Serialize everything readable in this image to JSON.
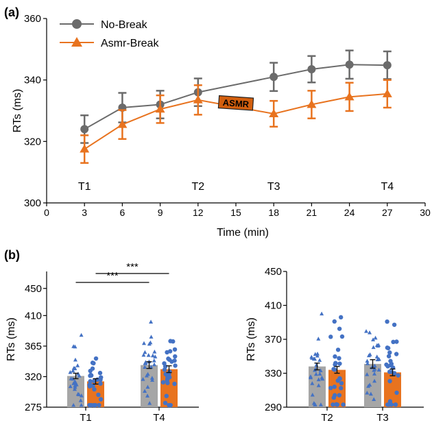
{
  "colors": {
    "gray": "#6b6b6b",
    "gray_dark": "#555555",
    "orange": "#e8731f",
    "orange_dark": "#d35f0e",
    "blue": "#4472c4",
    "axis": "#000000"
  },
  "chart_data": [
    {
      "id": "a",
      "panel_label": "(a)",
      "type": "line",
      "xlabel": "Time (min)",
      "ylabel": "RTs (ms)",
      "xlim": [
        0,
        30
      ],
      "ylim": [
        300,
        360
      ],
      "xticks": [
        0,
        3,
        6,
        9,
        12,
        15,
        18,
        21,
        24,
        27,
        30
      ],
      "yticks": [
        300,
        320,
        340,
        360
      ],
      "legend_position": "top-left",
      "series": [
        {
          "name": "No-Break",
          "marker": "circle",
          "color": "#6b6b6b",
          "x": [
            3,
            6,
            9,
            12,
            18,
            21,
            24,
            27
          ],
          "y": [
            324,
            331,
            332,
            336,
            341,
            343.5,
            345,
            344.8
          ],
          "err": [
            4.5,
            4.8,
            4.5,
            4.5,
            4.6,
            4.3,
            4.6,
            4.5
          ]
        },
        {
          "name": "Asmr-Break",
          "marker": "triangle",
          "color": "#e8731f",
          "x": [
            3,
            6,
            9,
            12,
            18,
            21,
            24,
            27
          ],
          "y": [
            317.5,
            325.5,
            330.5,
            333.5,
            329,
            332,
            334.5,
            335.5
          ],
          "err": [
            4.5,
            4.7,
            4.5,
            4.8,
            4.2,
            4.5,
            4.6,
            4.5
          ]
        }
      ],
      "time_labels": [
        {
          "text": "T1",
          "x": 3
        },
        {
          "text": "T2",
          "x": 12
        },
        {
          "text": "T3",
          "x": 18
        },
        {
          "text": "T4",
          "x": 27
        }
      ],
      "annotation": {
        "text": "ASMR",
        "x": 15,
        "y": 332.5
      }
    },
    {
      "id": "b1",
      "panel_label": "(b)",
      "type": "bar",
      "ylabel": "RTs (ms)",
      "ylim": [
        275,
        475
      ],
      "yticks": [
        275,
        320,
        365,
        410,
        450
      ],
      "categories": [
        "T1",
        "T4"
      ],
      "series": [
        {
          "name": "No-Break",
          "color": "#a6a6a6",
          "values": [
            321,
            337
          ],
          "err": [
            4,
            5
          ]
        },
        {
          "name": "Asmr-Break",
          "color": "#e8731f",
          "values": [
            313,
            331
          ],
          "err": [
            4,
            5
          ]
        }
      ],
      "significance": [
        {
          "label": "***",
          "from": "T1",
          "to": "T4",
          "group_from": 0,
          "group_to": 0
        },
        {
          "label": "***",
          "from": "T1",
          "to": "T4",
          "group_from": 1,
          "group_to": 1
        }
      ]
    },
    {
      "id": "b2",
      "type": "bar",
      "ylabel": "RTs (ms)",
      "ylim": [
        290,
        450
      ],
      "yticks": [
        290,
        330,
        370,
        410,
        450
      ],
      "categories": [
        "T2",
        "T3"
      ],
      "series": [
        {
          "name": "No-Break",
          "color": "#a6a6a6",
          "values": [
            338,
            341
          ],
          "err": [
            4,
            5
          ]
        },
        {
          "name": "Asmr-Break",
          "color": "#e8731f",
          "values": [
            334,
            331
          ],
          "err": [
            4,
            4
          ]
        }
      ]
    }
  ]
}
